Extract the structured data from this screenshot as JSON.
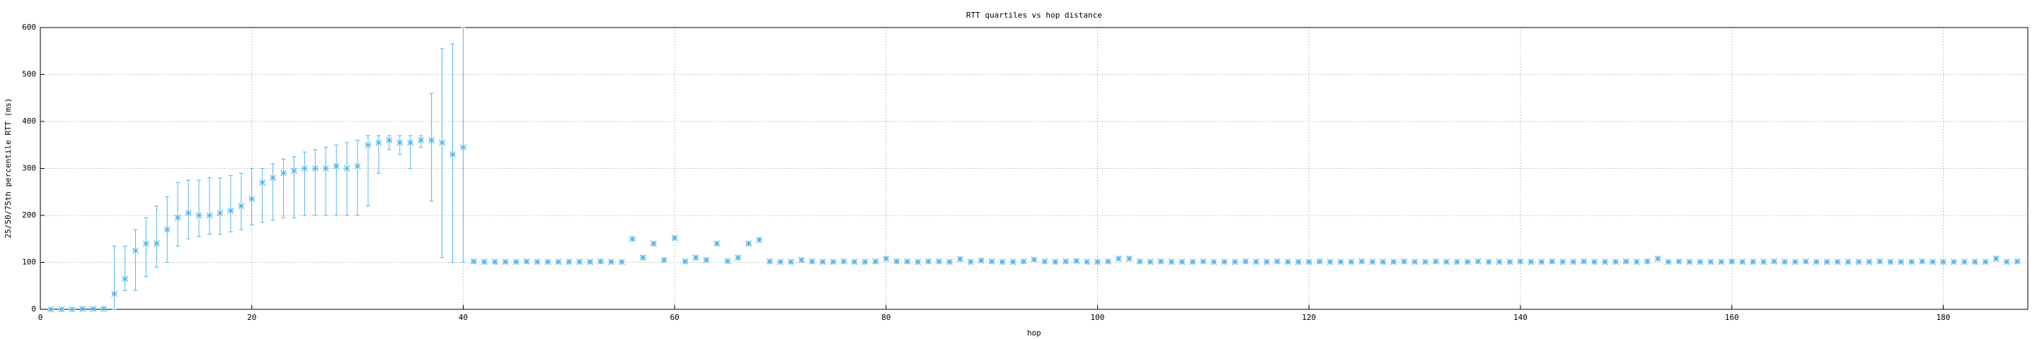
{
  "chart_data": {
    "type": "errorbar",
    "title": "RTT quartiles vs hop distance",
    "x_label": "hop",
    "y_label": "25/50/75th percentile RTT (ms)",
    "color": "#56b4e9",
    "grid": true,
    "xlim": [
      0,
      188
    ],
    "xticks": [
      0,
      20,
      40,
      60,
      80,
      100,
      120,
      140,
      160,
      180
    ],
    "ylim": [
      0,
      600
    ],
    "yticks": [
      0,
      100,
      200,
      300,
      400,
      500,
      600
    ],
    "x": [
      1,
      2,
      3,
      4,
      5,
      6,
      7,
      8,
      9,
      10,
      11,
      12,
      13,
      14,
      15,
      16,
      17,
      18,
      19,
      20,
      21,
      22,
      23,
      24,
      25,
      26,
      27,
      28,
      29,
      30,
      31,
      32,
      33,
      34,
      35,
      36,
      37,
      38,
      39,
      40,
      41,
      42,
      43,
      44,
      45,
      46,
      47,
      48,
      49,
      50,
      51,
      52,
      53,
      54,
      55,
      56,
      57,
      58,
      59,
      60,
      61,
      62,
      63,
      64,
      65,
      66,
      67,
      68,
      69,
      70,
      71,
      72,
      73,
      74,
      75,
      76,
      77,
      78,
      79,
      80,
      81,
      82,
      83,
      84,
      85,
      86,
      87,
      88,
      89,
      90,
      91,
      92,
      93,
      94,
      95,
      96,
      97,
      98,
      99,
      100,
      101,
      102,
      103,
      104,
      105,
      106,
      107,
      108,
      109,
      110,
      111,
      112,
      113,
      114,
      115,
      116,
      117,
      118,
      119,
      120,
      121,
      122,
      123,
      124,
      125,
      126,
      127,
      128,
      129,
      130,
      131,
      132,
      133,
      134,
      135,
      136,
      137,
      138,
      139,
      140,
      141,
      142,
      143,
      144,
      145,
      146,
      147,
      148,
      149,
      150,
      151,
      152,
      153,
      154,
      155,
      156,
      157,
      158,
      159,
      160,
      161,
      162,
      163,
      164,
      165,
      166,
      167,
      168,
      169,
      170,
      171,
      172,
      173,
      174,
      175,
      176,
      177,
      178,
      179,
      180,
      181,
      182,
      183,
      184,
      185,
      186,
      187
    ],
    "median": [
      0,
      0,
      0,
      1,
      1,
      1,
      33,
      65,
      125,
      140,
      140,
      170,
      195,
      205,
      200,
      200,
      205,
      210,
      220,
      235,
      270,
      280,
      290,
      295,
      300,
      300,
      300,
      305,
      300,
      305,
      350,
      355,
      360,
      355,
      355,
      360,
      360,
      355,
      330,
      345,
      102,
      101,
      101,
      101,
      101,
      102,
      101,
      101,
      101,
      101,
      101,
      101,
      102,
      101,
      101,
      150,
      110,
      140,
      105,
      152,
      102,
      110,
      105,
      140,
      103,
      110,
      140,
      148,
      102,
      101,
      101,
      105,
      102,
      101,
      101,
      102,
      101,
      101,
      102,
      108,
      102,
      102,
      101,
      102,
      102,
      101,
      107,
      101,
      104,
      102,
      101,
      101,
      102,
      106,
      102,
      101,
      102,
      103,
      101,
      101,
      102,
      108,
      108,
      102,
      101,
      102,
      101,
      101,
      101,
      102,
      101,
      101,
      101,
      102,
      101,
      101,
      102,
      101,
      101,
      101,
      102,
      101,
      101,
      101,
      102,
      101,
      101,
      101,
      102,
      101,
      101,
      102,
      101,
      101,
      101,
      102,
      101,
      101,
      101,
      102,
      101,
      101,
      102,
      101,
      101,
      102,
      101,
      101,
      101,
      102,
      101,
      102,
      108,
      101,
      102,
      101,
      101,
      101,
      101,
      102,
      101,
      101,
      101,
      102,
      101,
      101,
      102,
      101,
      101,
      101,
      101,
      101,
      101,
      102,
      101,
      101,
      101,
      102,
      101,
      101,
      101,
      101,
      101,
      101,
      108,
      101,
      102
    ],
    "q25": [
      0,
      0,
      0,
      0,
      0,
      0,
      0,
      40,
      40,
      70,
      90,
      100,
      135,
      150,
      155,
      160,
      160,
      165,
      170,
      180,
      185,
      190,
      195,
      195,
      200,
      200,
      200,
      200,
      200,
      200,
      220,
      290,
      340,
      330,
      300,
      345,
      230,
      110,
      100,
      100,
      99,
      99,
      99,
      99,
      99,
      99,
      99,
      99,
      99,
      99,
      99,
      99,
      99,
      99,
      99,
      147,
      107,
      137,
      102,
      149,
      99,
      107,
      102,
      137,
      99,
      107,
      137,
      145,
      99,
      99,
      99,
      102,
      99,
      99,
      99,
      99,
      99,
      99,
      99,
      105,
      99,
      99,
      99,
      99,
      99,
      99,
      104,
      99,
      101,
      99,
      99,
      99,
      99,
      103,
      99,
      99,
      99,
      100,
      99,
      99,
      99,
      105,
      105,
      99,
      99,
      99,
      99,
      99,
      99,
      99,
      99,
      99,
      99,
      99,
      99,
      99,
      99,
      99,
      99,
      99,
      99,
      99,
      99,
      99,
      99,
      99,
      99,
      99,
      99,
      99,
      99,
      99,
      99,
      99,
      99,
      99,
      99,
      99,
      99,
      99,
      99,
      99,
      99,
      99,
      99,
      99,
      99,
      99,
      99,
      99,
      99,
      99,
      105,
      99,
      99,
      99,
      99,
      99,
      99,
      99,
      99,
      99,
      99,
      99,
      99,
      99,
      99,
      99,
      99,
      99,
      99,
      99,
      99,
      99,
      99,
      99,
      99,
      99,
      99,
      99,
      99,
      99,
      99,
      99,
      105,
      99,
      99
    ],
    "q75": [
      1,
      1,
      1,
      2,
      2,
      2,
      135,
      135,
      170,
      195,
      220,
      240,
      270,
      275,
      275,
      280,
      280,
      285,
      290,
      300,
      300,
      310,
      320,
      325,
      335,
      340,
      345,
      350,
      355,
      360,
      370,
      370,
      370,
      370,
      370,
      370,
      460,
      555,
      565,
      600,
      104,
      104,
      104,
      104,
      104,
      104,
      104,
      104,
      104,
      104,
      104,
      104,
      104,
      104,
      104,
      153,
      113,
      143,
      108,
      155,
      104,
      113,
      108,
      143,
      104,
      113,
      143,
      151,
      104,
      104,
      104,
      108,
      104,
      104,
      104,
      104,
      104,
      104,
      104,
      111,
      104,
      104,
      104,
      104,
      104,
      104,
      110,
      104,
      107,
      104,
      104,
      104,
      104,
      109,
      104,
      104,
      104,
      106,
      104,
      104,
      104,
      111,
      111,
      104,
      104,
      104,
      104,
      104,
      104,
      104,
      104,
      104,
      104,
      104,
      104,
      104,
      104,
      104,
      104,
      104,
      104,
      104,
      104,
      104,
      104,
      104,
      104,
      104,
      104,
      104,
      104,
      104,
      104,
      104,
      104,
      104,
      104,
      104,
      104,
      104,
      104,
      104,
      104,
      104,
      104,
      104,
      104,
      104,
      104,
      104,
      104,
      104,
      111,
      104,
      104,
      104,
      104,
      104,
      104,
      104,
      104,
      104,
      104,
      104,
      104,
      104,
      104,
      104,
      104,
      104,
      104,
      104,
      104,
      104,
      104,
      104,
      104,
      104,
      104,
      104,
      104,
      104,
      104,
      104,
      111,
      104,
      104
    ]
  }
}
